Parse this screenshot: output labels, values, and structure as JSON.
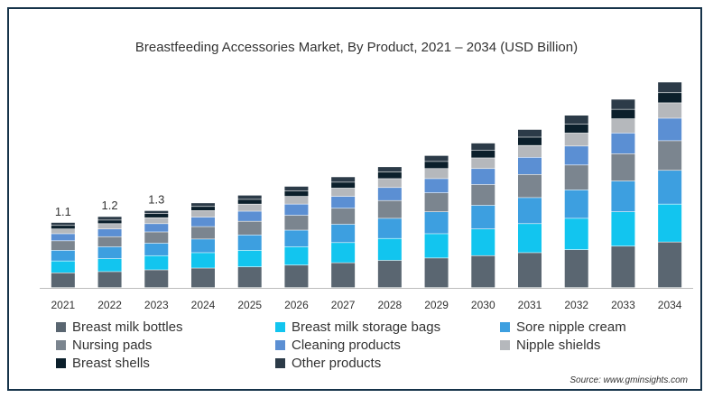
{
  "title": "Breastfeeding Accessories Market, By Product, 2021 – 2034 (USD Billion)",
  "source": "Source: www.gminsights.com",
  "chart_data": {
    "type": "bar",
    "stacked": true,
    "categories": [
      "2021",
      "2022",
      "2023",
      "2024",
      "2025",
      "2026",
      "2027",
      "2028",
      "2029",
      "2030",
      "2031",
      "2032",
      "2033",
      "2034"
    ],
    "totals": [
      1.1,
      1.2,
      1.3,
      1.43,
      1.56,
      1.71,
      1.87,
      2.04,
      2.23,
      2.44,
      2.67,
      2.91,
      3.18,
      3.47
    ],
    "data_labels": [
      {
        "index": 0,
        "text": "1.1"
      },
      {
        "index": 1,
        "text": "1.2"
      },
      {
        "index": 2,
        "text": "1.3"
      }
    ],
    "series": [
      {
        "name": "Breast milk bottles",
        "color": "#5a6671",
        "values": [
          0.25,
          0.27,
          0.3,
          0.33,
          0.35,
          0.38,
          0.42,
          0.46,
          0.5,
          0.54,
          0.59,
          0.64,
          0.7,
          0.77
        ]
      },
      {
        "name": "Breast milk storage bags",
        "color": "#12c5ef",
        "values": [
          0.2,
          0.22,
          0.24,
          0.26,
          0.28,
          0.31,
          0.34,
          0.37,
          0.41,
          0.45,
          0.49,
          0.53,
          0.58,
          0.64
        ]
      },
      {
        "name": "Sore nipple cream",
        "color": "#3d9fe0",
        "values": [
          0.18,
          0.2,
          0.21,
          0.23,
          0.26,
          0.28,
          0.31,
          0.34,
          0.37,
          0.4,
          0.44,
          0.48,
          0.52,
          0.57
        ]
      },
      {
        "name": "Nursing pads",
        "color": "#7b858f",
        "values": [
          0.16,
          0.17,
          0.19,
          0.21,
          0.23,
          0.25,
          0.27,
          0.3,
          0.32,
          0.35,
          0.39,
          0.42,
          0.46,
          0.5
        ]
      },
      {
        "name": "Cleaning products",
        "color": "#5b8fd3",
        "values": [
          0.12,
          0.13,
          0.14,
          0.16,
          0.17,
          0.19,
          0.2,
          0.22,
          0.24,
          0.27,
          0.29,
          0.32,
          0.35,
          0.38
        ]
      },
      {
        "name": "Nipple shields",
        "color": "#b5b8bc",
        "values": [
          0.08,
          0.09,
          0.1,
          0.11,
          0.12,
          0.13,
          0.14,
          0.15,
          0.17,
          0.18,
          0.2,
          0.22,
          0.24,
          0.26
        ]
      },
      {
        "name": "Breast shells",
        "color": "#0b1f2b",
        "values": [
          0.06,
          0.06,
          0.07,
          0.07,
          0.08,
          0.09,
          0.1,
          0.11,
          0.12,
          0.13,
          0.14,
          0.15,
          0.16,
          0.17
        ]
      },
      {
        "name": "Other products",
        "color": "#2c3b48",
        "values": [
          0.05,
          0.06,
          0.05,
          0.06,
          0.07,
          0.08,
          0.09,
          0.09,
          0.1,
          0.12,
          0.13,
          0.15,
          0.17,
          0.18
        ]
      }
    ],
    "legend_position": "bottom",
    "grid": false
  }
}
